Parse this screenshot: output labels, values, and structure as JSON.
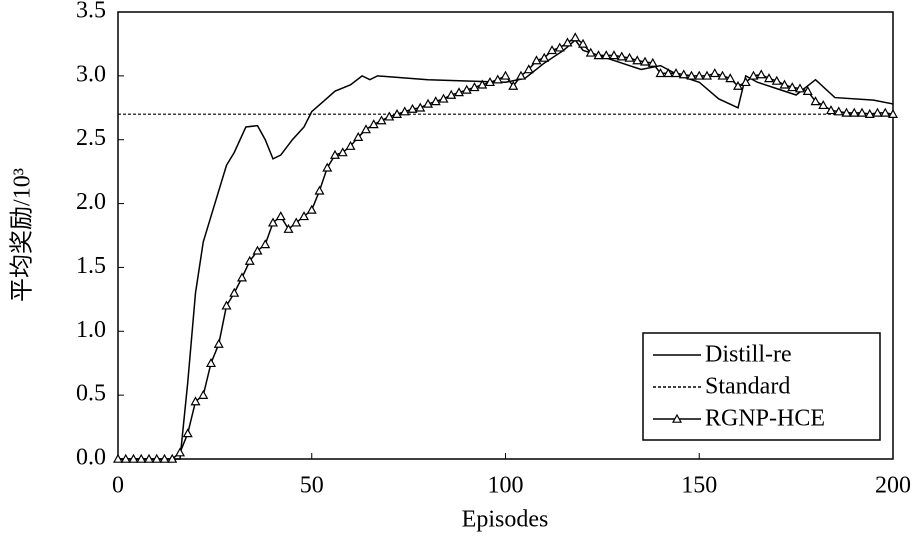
{
  "chart_data": {
    "type": "line",
    "xlabel": "Episodes",
    "ylabel": "平均奖励/10³",
    "xlim": [
      0,
      200
    ],
    "xticks": [
      0,
      50,
      100,
      150,
      200
    ],
    "ylim": [
      0,
      3.5
    ],
    "yticks": [
      {
        "value": 0,
        "label": "0.0"
      },
      0.5,
      {
        "value": 1,
        "label": "1.0"
      },
      1.5,
      {
        "value": 2,
        "label": "2.0"
      },
      2.5,
      {
        "value": 3,
        "label": "3.0"
      },
      3.5
    ],
    "legend": "lower right",
    "series": [
      {
        "name": "Distill-re",
        "color": "#000000",
        "style": "solid",
        "x": [
          0,
          16,
          18,
          20,
          22,
          25,
          28,
          30,
          33,
          36,
          38,
          40,
          42,
          45,
          48,
          50,
          53,
          56,
          60,
          63,
          65,
          67,
          80,
          100,
          105,
          110,
          115,
          118,
          120,
          125,
          130,
          135,
          140,
          145,
          150,
          155,
          160,
          162,
          165,
          170,
          175,
          180,
          185,
          195,
          200
        ],
        "values": [
          0,
          0,
          0.6,
          1.3,
          1.7,
          2.0,
          2.3,
          2.4,
          2.6,
          2.61,
          2.5,
          2.35,
          2.38,
          2.5,
          2.6,
          2.72,
          2.8,
          2.88,
          2.93,
          3.0,
          2.97,
          3.0,
          2.97,
          2.95,
          2.98,
          3.1,
          3.2,
          3.28,
          3.2,
          3.15,
          3.1,
          3.05,
          3.08,
          3.0,
          2.95,
          2.82,
          2.75,
          3.0,
          2.95,
          2.9,
          2.85,
          2.97,
          2.83,
          2.81,
          2.78
        ]
      },
      {
        "name": "Standard",
        "color": "#000000",
        "style": "dashed",
        "x": [
          0,
          200
        ],
        "values": [
          2.7,
          2.7
        ]
      },
      {
        "name": "RGNP-HCE",
        "color": "#000000",
        "style": "solid",
        "marker": "triangle",
        "x": [
          0,
          2,
          4,
          6,
          8,
          10,
          12,
          14,
          16,
          18,
          20,
          22,
          24,
          26,
          28,
          30,
          32,
          34,
          36,
          38,
          40,
          42,
          44,
          46,
          48,
          50,
          52,
          54,
          56,
          58,
          60,
          62,
          64,
          66,
          68,
          70,
          72,
          74,
          76,
          78,
          80,
          82,
          84,
          86,
          88,
          90,
          92,
          94,
          96,
          98,
          100,
          102,
          104,
          106,
          108,
          110,
          112,
          114,
          116,
          118,
          120,
          122,
          124,
          126,
          128,
          130,
          132,
          134,
          136,
          138,
          140,
          142,
          144,
          146,
          148,
          150,
          152,
          154,
          156,
          158,
          160,
          162,
          164,
          166,
          168,
          170,
          172,
          174,
          176,
          178,
          180,
          182,
          184,
          186,
          188,
          190,
          192,
          194,
          196,
          198,
          200
        ],
        "values": [
          0,
          0,
          0,
          0,
          0,
          0,
          0,
          0,
          0.05,
          0.2,
          0.45,
          0.5,
          0.75,
          0.9,
          1.2,
          1.3,
          1.42,
          1.55,
          1.63,
          1.68,
          1.85,
          1.9,
          1.8,
          1.85,
          1.9,
          1.95,
          2.1,
          2.28,
          2.38,
          2.4,
          2.45,
          2.52,
          2.58,
          2.62,
          2.65,
          2.68,
          2.7,
          2.72,
          2.74,
          2.75,
          2.78,
          2.8,
          2.82,
          2.85,
          2.87,
          2.89,
          2.91,
          2.93,
          2.95,
          2.97,
          3.0,
          2.92,
          3.0,
          3.05,
          3.12,
          3.14,
          3.2,
          3.22,
          3.26,
          3.3,
          3.25,
          3.18,
          3.16,
          3.16,
          3.16,
          3.15,
          3.14,
          3.12,
          3.11,
          3.1,
          3.02,
          3.02,
          3.02,
          3.01,
          3.0,
          3.0,
          3.0,
          3.02,
          3.0,
          2.98,
          2.92,
          2.95,
          3.0,
          3.01,
          2.98,
          2.96,
          2.93,
          2.91,
          2.9,
          2.88,
          2.8,
          2.77,
          2.73,
          2.72,
          2.71,
          2.71,
          2.71,
          2.7,
          2.71,
          2.71,
          2.7
        ]
      }
    ]
  }
}
